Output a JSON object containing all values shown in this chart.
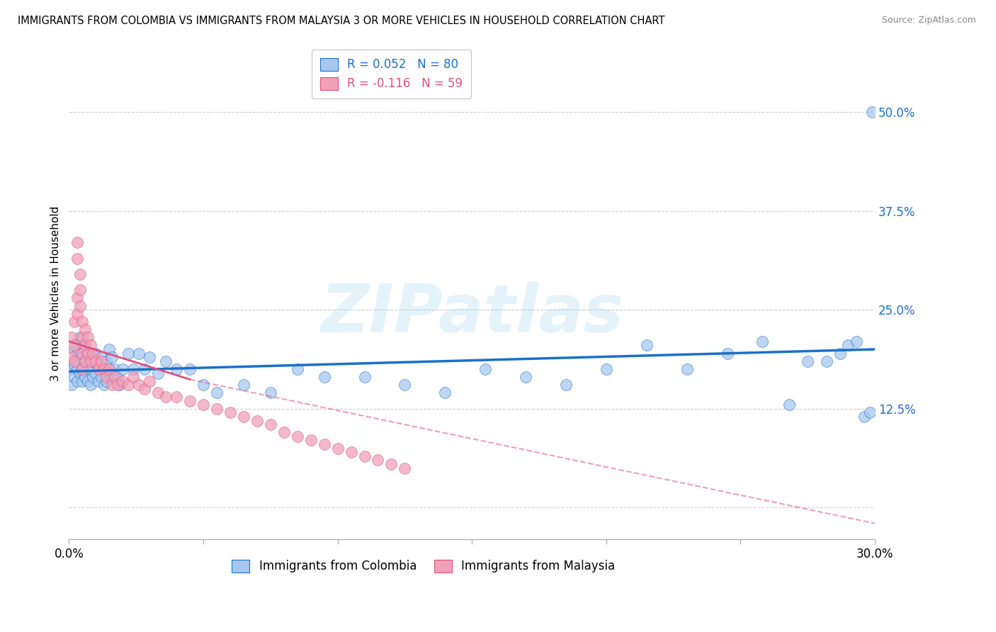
{
  "title": "IMMIGRANTS FROM COLOMBIA VS IMMIGRANTS FROM MALAYSIA 3 OR MORE VEHICLES IN HOUSEHOLD CORRELATION CHART",
  "source": "Source: ZipAtlas.com",
  "ylabel": "3 or more Vehicles in Household",
  "right_yticks": [
    0.0,
    0.125,
    0.25,
    0.375,
    0.5
  ],
  "right_yticklabels": [
    "",
    "12.5%",
    "25.0%",
    "37.5%",
    "50.0%"
  ],
  "xlim": [
    0.0,
    0.3
  ],
  "ylim": [
    -0.04,
    0.58
  ],
  "color_colombia": "#a8c8f0",
  "color_malaysia": "#f0a0b8",
  "trendline_colombia_color": "#1a6fcc",
  "trendline_malaysia_color": "#e05080",
  "watermark": "ZIPatlas",
  "legend_colombia": "R = 0.052   N = 80",
  "legend_malaysia": "R = -0.116   N = 59",
  "colombia_x": [
    0.001,
    0.001,
    0.002,
    0.002,
    0.002,
    0.003,
    0.003,
    0.003,
    0.003,
    0.004,
    0.004,
    0.004,
    0.005,
    0.005,
    0.005,
    0.005,
    0.006,
    0.006,
    0.006,
    0.007,
    0.007,
    0.007,
    0.008,
    0.008,
    0.008,
    0.009,
    0.009,
    0.01,
    0.01,
    0.011,
    0.011,
    0.012,
    0.012,
    0.013,
    0.013,
    0.014,
    0.014,
    0.015,
    0.015,
    0.016,
    0.016,
    0.017,
    0.018,
    0.019,
    0.02,
    0.022,
    0.024,
    0.026,
    0.028,
    0.03,
    0.033,
    0.036,
    0.04,
    0.045,
    0.05,
    0.055,
    0.065,
    0.075,
    0.085,
    0.095,
    0.11,
    0.125,
    0.14,
    0.155,
    0.17,
    0.185,
    0.2,
    0.215,
    0.23,
    0.245,
    0.258,
    0.268,
    0.275,
    0.282,
    0.287,
    0.29,
    0.293,
    0.296,
    0.298,
    0.299
  ],
  "colombia_y": [
    0.175,
    0.155,
    0.2,
    0.18,
    0.165,
    0.195,
    0.185,
    0.175,
    0.16,
    0.215,
    0.195,
    0.17,
    0.205,
    0.19,
    0.175,
    0.16,
    0.2,
    0.185,
    0.165,
    0.195,
    0.175,
    0.16,
    0.19,
    0.175,
    0.155,
    0.185,
    0.165,
    0.195,
    0.17,
    0.18,
    0.16,
    0.19,
    0.165,
    0.175,
    0.155,
    0.185,
    0.16,
    0.2,
    0.175,
    0.19,
    0.165,
    0.175,
    0.165,
    0.155,
    0.175,
    0.195,
    0.175,
    0.195,
    0.175,
    0.19,
    0.17,
    0.185,
    0.175,
    0.175,
    0.155,
    0.145,
    0.155,
    0.145,
    0.175,
    0.165,
    0.165,
    0.155,
    0.145,
    0.175,
    0.165,
    0.155,
    0.175,
    0.205,
    0.175,
    0.195,
    0.21,
    0.13,
    0.185,
    0.185,
    0.195,
    0.205,
    0.21,
    0.115,
    0.12,
    0.5
  ],
  "malaysia_x": [
    0.001,
    0.001,
    0.002,
    0.002,
    0.002,
    0.003,
    0.003,
    0.003,
    0.003,
    0.004,
    0.004,
    0.004,
    0.005,
    0.005,
    0.005,
    0.005,
    0.006,
    0.006,
    0.006,
    0.007,
    0.007,
    0.008,
    0.008,
    0.009,
    0.01,
    0.011,
    0.012,
    0.013,
    0.014,
    0.015,
    0.016,
    0.017,
    0.018,
    0.02,
    0.022,
    0.024,
    0.026,
    0.028,
    0.03,
    0.033,
    0.036,
    0.04,
    0.045,
    0.05,
    0.055,
    0.06,
    0.065,
    0.07,
    0.075,
    0.08,
    0.085,
    0.09,
    0.095,
    0.1,
    0.105,
    0.11,
    0.115,
    0.12,
    0.125
  ],
  "malaysia_y": [
    0.215,
    0.19,
    0.235,
    0.205,
    0.185,
    0.335,
    0.315,
    0.265,
    0.245,
    0.295,
    0.275,
    0.255,
    0.235,
    0.215,
    0.195,
    0.175,
    0.225,
    0.205,
    0.185,
    0.215,
    0.195,
    0.205,
    0.185,
    0.195,
    0.185,
    0.175,
    0.185,
    0.175,
    0.165,
    0.175,
    0.155,
    0.165,
    0.155,
    0.16,
    0.155,
    0.165,
    0.155,
    0.15,
    0.16,
    0.145,
    0.14,
    0.14,
    0.135,
    0.13,
    0.125,
    0.12,
    0.115,
    0.11,
    0.105,
    0.095,
    0.09,
    0.085,
    0.08,
    0.075,
    0.07,
    0.065,
    0.06,
    0.055,
    0.05
  ]
}
